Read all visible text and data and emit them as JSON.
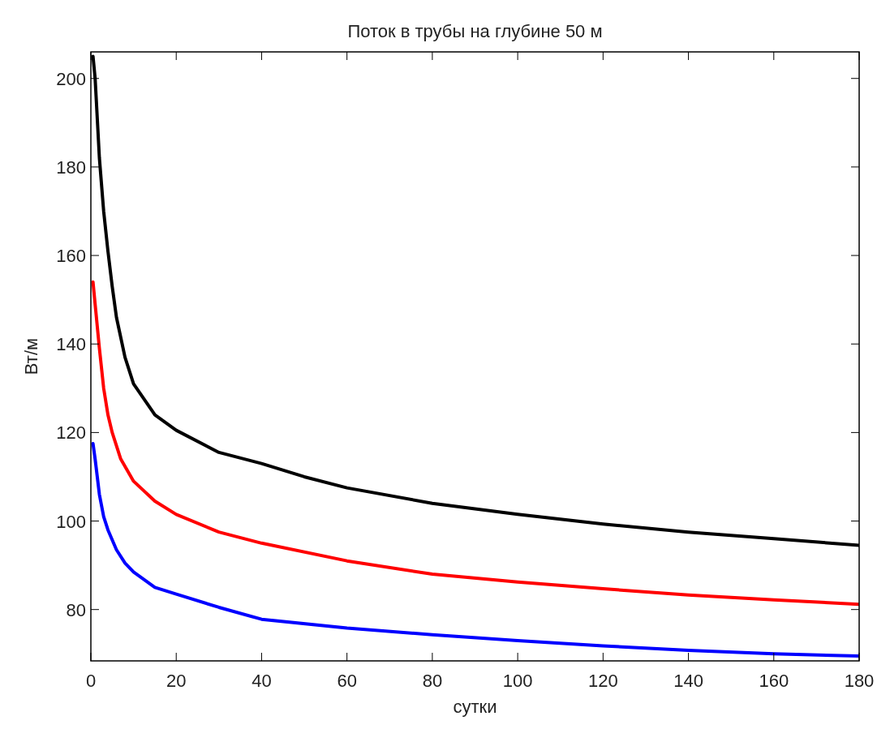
{
  "chart_data": {
    "type": "line",
    "title": "Поток в трубы на глубине 50 м",
    "xlabel": "сутки",
    "ylabel": "Вт/м",
    "xlim": [
      0,
      180
    ],
    "xticks": [
      0,
      20,
      40,
      60,
      80,
      100,
      120,
      140,
      160,
      180
    ],
    "ylim": [
      68.4,
      206
    ],
    "yticks": [
      80,
      100,
      120,
      140,
      160,
      180,
      200
    ],
    "grid": false,
    "series": [
      {
        "color": "#000000",
        "x": [
          0.5,
          1,
          2,
          3,
          4,
          5,
          6,
          8,
          10,
          15,
          20,
          30,
          40,
          50,
          60,
          80,
          100,
          120,
          140,
          160,
          180
        ],
        "values": [
          205,
          200,
          182,
          170,
          161,
          153,
          146,
          137,
          131,
          124,
          120.5,
          115.5,
          113,
          110,
          107.5,
          104,
          101.5,
          99.3,
          97.5,
          96,
          94.5
        ]
      },
      {
        "color": "#ff0000",
        "x": [
          0.5,
          1,
          2,
          3,
          4,
          5,
          7,
          10,
          15,
          20,
          30,
          40,
          60,
          80,
          100,
          120,
          140,
          160,
          180
        ],
        "values": [
          154,
          149,
          139,
          130,
          124,
          120,
          114,
          109,
          104.5,
          101.5,
          97.5,
          95,
          91,
          88,
          86.2,
          84.7,
          83.3,
          82.2,
          81.2
        ]
      },
      {
        "color": "#0000ff",
        "x": [
          0.5,
          1,
          2,
          3,
          4,
          6,
          8,
          10,
          15,
          20,
          30,
          40,
          60,
          80,
          100,
          120,
          140,
          160,
          180
        ],
        "values": [
          117.5,
          114,
          106,
          101,
          98,
          93.5,
          90.5,
          88.5,
          85,
          83.5,
          80.5,
          77.8,
          75.8,
          74.3,
          73,
          71.8,
          70.8,
          70,
          69.5
        ]
      }
    ]
  }
}
